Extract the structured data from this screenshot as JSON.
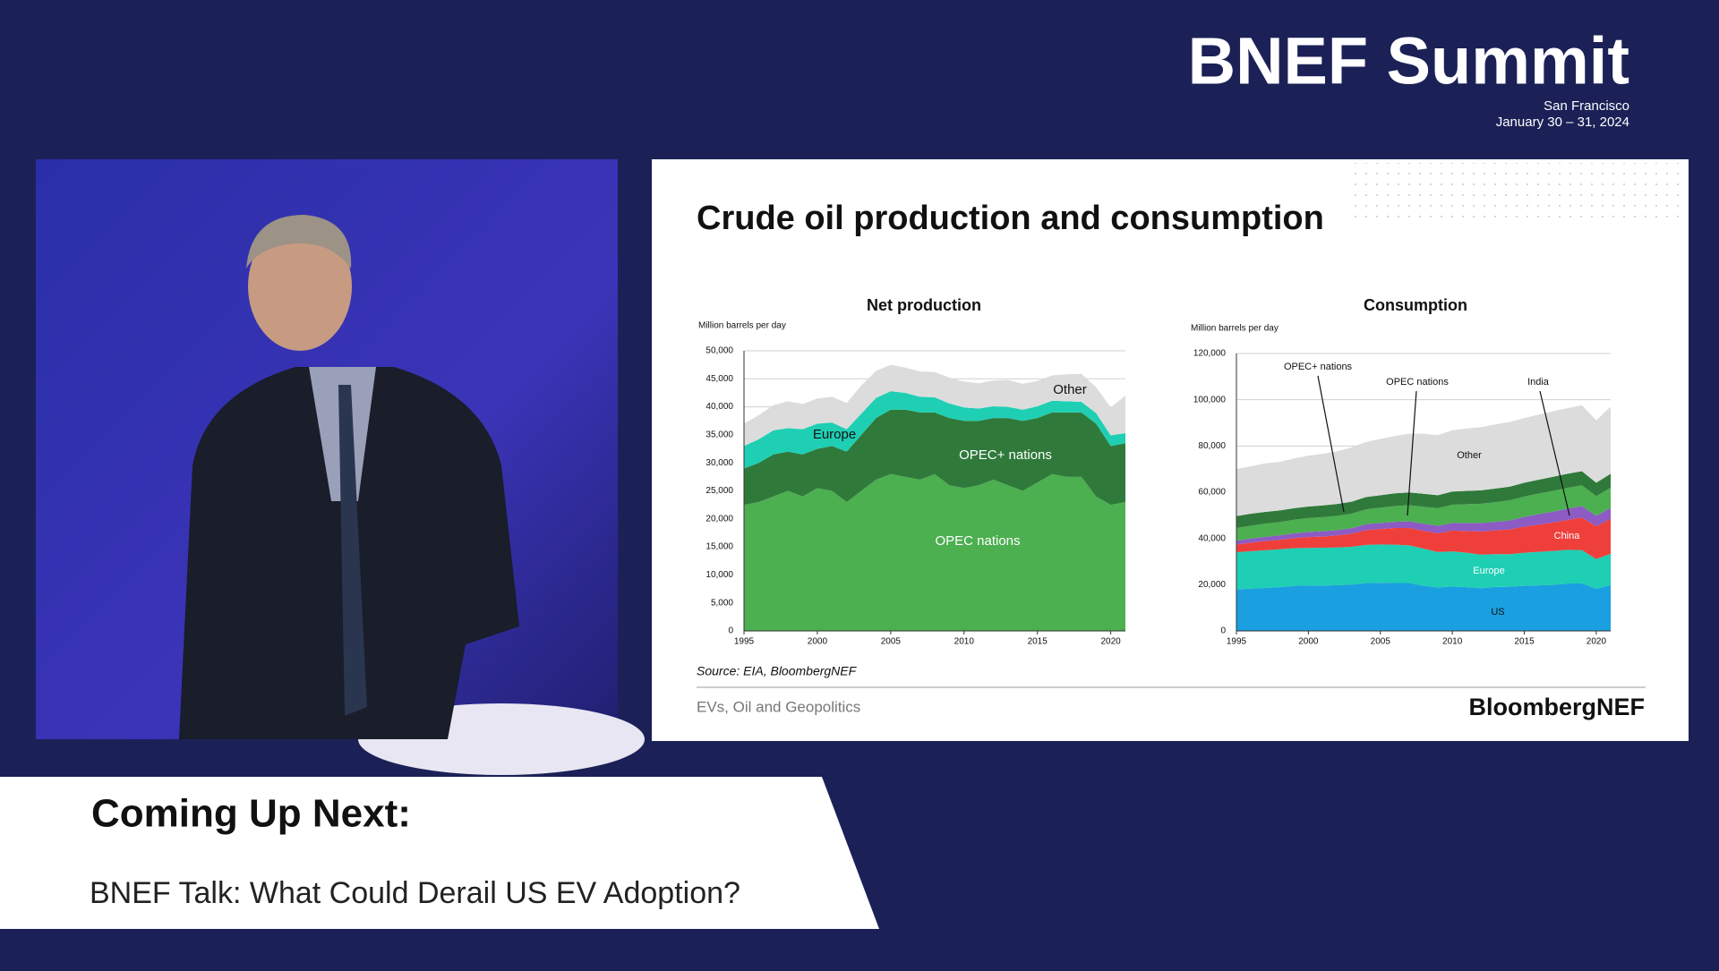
{
  "header": {
    "title": "BNEF Summit",
    "location": "San Francisco",
    "dates": "January 30 – 31, 2024"
  },
  "slide": {
    "title": "Crude oil production and consumption",
    "source": "Source: EIA, BloombergNEF",
    "footer": "EVs, Oil and Geopolitics",
    "logo": "BloombergNEF"
  },
  "chart_data": [
    {
      "type": "stacked-area",
      "title": "Net production",
      "y_label": "Million barrels per day",
      "x": [
        1995,
        1996,
        1997,
        1998,
        1999,
        2000,
        2001,
        2002,
        2003,
        2004,
        2005,
        2006,
        2007,
        2008,
        2009,
        2010,
        2011,
        2012,
        2013,
        2014,
        2015,
        2016,
        2017,
        2018,
        2019,
        2020,
        2021
      ],
      "xlim": [
        1995,
        2021
      ],
      "xticks": [
        1995,
        2000,
        2005,
        2010,
        2015,
        2020
      ],
      "ylim": [
        0,
        50000
      ],
      "yticks": [
        0,
        {
          "value": 5000,
          "label": "5,000"
        },
        {
          "value": 10000,
          "label": "10,000"
        },
        {
          "value": 15000,
          "label": "15,000"
        },
        {
          "value": 20000,
          "label": "20,000"
        },
        {
          "value": 25000,
          "label": "25,000"
        },
        {
          "value": 30000,
          "label": "30,000"
        },
        {
          "value": 35000,
          "label": "35,000"
        },
        {
          "value": 40000,
          "label": "40,000"
        },
        {
          "value": 45000,
          "label": "45,000"
        },
        {
          "value": 50000,
          "label": "50,000"
        }
      ],
      "grid": true,
      "series": [
        {
          "name": "OPEC nations",
          "color": "#4caf50",
          "values": [
            22500,
            23000,
            24000,
            25000,
            24000,
            25500,
            25000,
            23000,
            25000,
            27000,
            28000,
            27500,
            27000,
            28000,
            26000,
            25500,
            26000,
            27000,
            26000,
            25000,
            26500,
            28000,
            27500,
            27500,
            24000,
            22500,
            23000
          ]
        },
        {
          "name": "OPEC+ nations",
          "color": "#2f7a3b",
          "values": [
            6500,
            7000,
            7500,
            7000,
            7500,
            7000,
            8000,
            9000,
            10000,
            11000,
            11500,
            12000,
            12000,
            11000,
            12000,
            12000,
            11500,
            11000,
            12000,
            12500,
            11500,
            11000,
            11500,
            11500,
            13000,
            10500,
            10500
          ]
        },
        {
          "name": "Europe",
          "color": "#1fcfb4",
          "values": [
            4000,
            4200,
            4300,
            4200,
            4500,
            4500,
            4200,
            4000,
            3800,
            3600,
            3300,
            3000,
            2800,
            2700,
            2600,
            2400,
            2200,
            2100,
            2000,
            2000,
            2100,
            2100,
            2000,
            1900,
            1900,
            1900,
            1800
          ]
        },
        {
          "name": "Other",
          "color": "#dcdcdc",
          "values": [
            4000,
            4300,
            4500,
            4800,
            4500,
            4500,
            4600,
            4700,
            5000,
            4800,
            4700,
            4500,
            4500,
            4500,
            4600,
            4600,
            4500,
            4600,
            4800,
            4600,
            4500,
            4500,
            4800,
            5000,
            4600,
            5000,
            6700
          ]
        }
      ]
    },
    {
      "type": "stacked-area",
      "title": "Consumption",
      "y_label": "Million barrels per day",
      "x": [
        1995,
        1996,
        1997,
        1998,
        1999,
        2000,
        2001,
        2002,
        2003,
        2004,
        2005,
        2006,
        2007,
        2008,
        2009,
        2010,
        2011,
        2012,
        2013,
        2014,
        2015,
        2016,
        2017,
        2018,
        2019,
        2020,
        2021
      ],
      "xlim": [
        1995,
        2021
      ],
      "xticks": [
        1995,
        2000,
        2005,
        2010,
        2015,
        2020
      ],
      "ylim": [
        0,
        120000
      ],
      "yticks": [
        0,
        {
          "value": 20000,
          "label": "20,000"
        },
        {
          "value": 40000,
          "label": "40,000"
        },
        {
          "value": 60000,
          "label": "60,000"
        },
        {
          "value": 80000,
          "label": "80,000"
        },
        {
          "value": 100000,
          "label": "100,000"
        },
        {
          "value": 120000,
          "label": "120,000"
        }
      ],
      "grid": true,
      "series": [
        {
          "name": "US",
          "color": "#1a9fe0",
          "values": [
            18000,
            18300,
            18600,
            18900,
            19500,
            19700,
            19600,
            19800,
            20000,
            20700,
            20800,
            20700,
            20700,
            19500,
            18800,
            19200,
            18900,
            18500,
            19000,
            19100,
            19500,
            19700,
            19900,
            20500,
            20500,
            18200,
            19900
          ]
        },
        {
          "name": "Europe",
          "color": "#1fcfb4",
          "values": [
            16000,
            16200,
            16300,
            16400,
            16300,
            16200,
            16400,
            16300,
            16400,
            16500,
            16600,
            16600,
            16300,
            16100,
            15300,
            15200,
            14900,
            14500,
            14200,
            14100,
            14300,
            14500,
            14700,
            14600,
            14500,
            12900,
            13500
          ]
        },
        {
          "name": "China",
          "color": "#ef3f3a",
          "values": [
            3400,
            3700,
            4000,
            4100,
            4300,
            4700,
            4800,
            5200,
            5600,
            6400,
            6700,
            7200,
            7500,
            7700,
            8100,
            9000,
            9400,
            10000,
            10300,
            10700,
            11300,
            11700,
            12300,
            12900,
            14000,
            14200,
            15000
          ]
        },
        {
          "name": "India",
          "color": "#8c5bc4",
          "values": [
            1600,
            1700,
            1800,
            1900,
            2100,
            2200,
            2300,
            2300,
            2400,
            2600,
            2600,
            2700,
            2900,
            3100,
            3300,
            3300,
            3500,
            3700,
            3700,
            3900,
            4200,
            4600,
            4700,
            4900,
            5000,
            4500,
            4800
          ]
        },
        {
          "name": "OPEC nations",
          "color": "#4caf50",
          "values": [
            5500,
            5600,
            5700,
            5800,
            5900,
            6000,
            6100,
            6200,
            6300,
            6400,
            6600,
            6800,
            7000,
            7300,
            7600,
            7900,
            8100,
            8300,
            8500,
            8700,
            8800,
            8900,
            9000,
            9000,
            9000,
            8500,
            8800
          ]
        },
        {
          "name": "OPEC+ nations",
          "color": "#2f7a3b",
          "values": [
            5200,
            5200,
            5100,
            5000,
            5000,
            5000,
            5100,
            5100,
            5200,
            5300,
            5400,
            5500,
            5500,
            5600,
            5600,
            5700,
            5800,
            5800,
            5900,
            5900,
            6000,
            6000,
            6100,
            6100,
            6100,
            5800,
            6000
          ]
        },
        {
          "name": "Other",
          "color": "#dcdcdc",
          "values": [
            20300,
            20500,
            21000,
            21000,
            21500,
            22000,
            22300,
            22800,
            23500,
            23800,
            24400,
            24800,
            25400,
            26000,
            26000,
            26500,
            27000,
            27300,
            27700,
            28000,
            28000,
            28200,
            28300,
            28400,
            28500,
            27000,
            29000
          ]
        }
      ]
    }
  ],
  "lower_third": {
    "heading": "Coming Up Next:",
    "subtitle": "BNEF Talk: What Could Derail US EV Adoption?"
  }
}
